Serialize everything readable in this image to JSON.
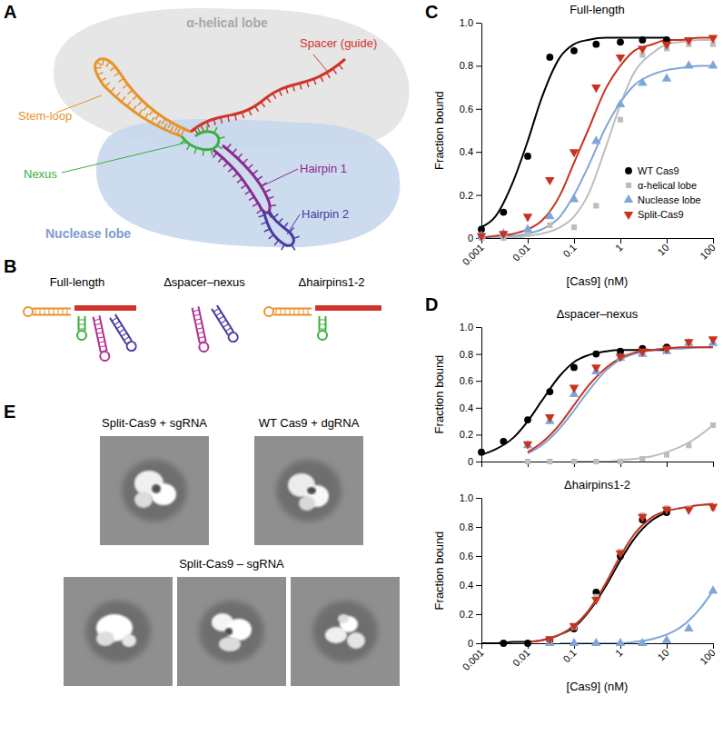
{
  "figure": {
    "panel_a": {
      "letter": "A",
      "alpha_lobe": "α-helical lobe",
      "stem_loop": "Stem-loop",
      "spacer": "Spacer (guide)",
      "nexus": "Nexus",
      "nuclease_lobe": "Nuclease lobe",
      "hairpin1": "Hairpin 1",
      "hairpin2": "Hairpin 2"
    },
    "panel_b": {
      "letter": "B",
      "constructs": [
        "Full-length",
        "Δspacer–nexus",
        "Δhairpins1-2"
      ]
    },
    "panel_c": {
      "letter": "C"
    },
    "panel_d": {
      "letter": "D"
    },
    "panel_e": {
      "letter": "E",
      "top_row": [
        "Split-Cas9 + sgRNA",
        "WT Cas9 + dgRNA"
      ],
      "bottom_row": "Split-Cas9 – sgRNA"
    }
  },
  "chart_data": [
    {
      "type": "scatter",
      "title": "Full-length",
      "xlabel": "[Cas9] (nM)",
      "ylabel": "Fraction bound",
      "log": "x",
      "legend": "lower right",
      "x": [
        0.001,
        0.003,
        0.01,
        0.03,
        0.1,
        0.3,
        1,
        3,
        10,
        30,
        100
      ],
      "fit_x": [
        0.001,
        0.002,
        0.005,
        0.01,
        0.02,
        0.05,
        0.1,
        0.2,
        0.5,
        1,
        2,
        5,
        10,
        20,
        50,
        100
      ],
      "xlim": [
        0.001,
        100
      ],
      "ylim": [
        0,
        1
      ],
      "xticks": [
        0.001,
        0.01,
        0.1,
        1,
        10,
        100
      ],
      "yticks": [
        0,
        0.2,
        0.4,
        0.6,
        0.8,
        {
          "value": 1,
          "label": "1.0"
        }
      ],
      "series": [
        {
          "name": "WT Cas9",
          "color": "#000000",
          "marker": "circle",
          "values": [
            0.04,
            0.12,
            0.38,
            0.84,
            0.87,
            0.9,
            0.91,
            0.92,
            0.92,
            null,
            null
          ],
          "fit": [
            0.05,
            0.1,
            0.27,
            0.45,
            0.65,
            0.84,
            0.9,
            0.92,
            0.93,
            0.93,
            0.93,
            0.93,
            0.93,
            null,
            null,
            null
          ]
        },
        {
          "name": "α-helical lobe",
          "color": "#bdbdbd",
          "marker": "square",
          "values": [
            0,
            0,
            0.02,
            0.06,
            0.05,
            0.15,
            0.55,
            0.85,
            0.88,
            0.9,
            0.9
          ],
          "fit": [
            0,
            0,
            0,
            0.01,
            0.02,
            0.05,
            0.1,
            0.2,
            0.43,
            0.62,
            0.77,
            0.86,
            0.9,
            0.91,
            0.92,
            0.92
          ]
        },
        {
          "name": "Nuclease lobe",
          "color": "#7fa6d8",
          "marker": "triangle-up",
          "values": [
            0.01,
            0.02,
            0.04,
            0.1,
            0.18,
            0.45,
            0.62,
            0.72,
            0.74,
            0.8,
            0.8
          ],
          "fit": [
            0,
            0.01,
            0.01,
            0.02,
            0.04,
            0.1,
            0.2,
            0.33,
            0.52,
            0.63,
            0.71,
            0.76,
            0.78,
            0.79,
            0.8,
            0.8
          ]
        },
        {
          "name": "Split-Cas9",
          "color": "#c8321e",
          "marker": "triangle-down",
          "values": [
            0.01,
            0.02,
            0.1,
            0.27,
            0.4,
            0.7,
            0.84,
            0.88,
            0.9,
            0.92,
            0.93
          ],
          "fit": [
            0,
            0.01,
            0.02,
            0.04,
            0.08,
            0.2,
            0.35,
            0.5,
            0.7,
            0.8,
            0.87,
            0.9,
            0.92,
            0.92,
            0.93,
            0.93
          ]
        }
      ]
    },
    {
      "type": "scatter",
      "title": "Δspacer–nexus",
      "ylabel": "Fraction bound",
      "log": "x",
      "tick_labels": "y",
      "x": [
        0.001,
        0.003,
        0.01,
        0.03,
        0.1,
        0.3,
        1,
        3,
        10,
        30,
        100
      ],
      "fit_x": [
        0.001,
        0.002,
        0.005,
        0.01,
        0.02,
        0.05,
        0.1,
        0.2,
        0.5,
        1,
        2,
        5,
        10,
        20,
        50,
        100
      ],
      "xlim": [
        0.001,
        100
      ],
      "ylim": [
        0,
        1
      ],
      "xticks": [
        0.001,
        0.01,
        0.1,
        1,
        10,
        100
      ],
      "yticks": [
        0,
        0.2,
        0.4,
        0.6,
        0.8,
        {
          "value": 1,
          "label": "1.0"
        }
      ],
      "series": [
        {
          "color": "#000000",
          "marker": "circle",
          "values": [
            0.07,
            0.15,
            0.31,
            0.52,
            0.7,
            0.8,
            0.82,
            0.84,
            0.85,
            null,
            null
          ],
          "fit": [
            0.05,
            0.09,
            0.18,
            0.3,
            0.45,
            0.64,
            0.74,
            0.79,
            0.82,
            0.83,
            0.83,
            0.83,
            0.83,
            null,
            null,
            null
          ]
        },
        {
          "color": "#bdbdbd",
          "marker": "square",
          "values": [
            null,
            null,
            0,
            0,
            0,
            0,
            0,
            0.02,
            0.05,
            0.12,
            0.27
          ],
          "fit": [
            null,
            null,
            null,
            null,
            null,
            null,
            0,
            0,
            0,
            0.01,
            0.02,
            0.04,
            0.07,
            0.11,
            0.19,
            0.27
          ]
        },
        {
          "color": "#7fa6d8",
          "marker": "triangle-up",
          "values": [
            null,
            null,
            0.12,
            0.3,
            0.5,
            0.67,
            0.77,
            0.8,
            0.82,
            0.88,
            0.88
          ],
          "fit": [
            null,
            null,
            null,
            0.06,
            0.12,
            0.25,
            0.38,
            0.52,
            0.68,
            0.76,
            0.8,
            0.83,
            0.84,
            0.84,
            0.85,
            0.85
          ]
        },
        {
          "color": "#c8321e",
          "marker": "triangle-down",
          "values": [
            null,
            null,
            0.13,
            0.33,
            0.55,
            0.7,
            0.78,
            0.82,
            0.84,
            0.89,
            0.91
          ],
          "fit": [
            null,
            null,
            null,
            0.07,
            0.14,
            0.28,
            0.42,
            0.56,
            0.7,
            0.77,
            0.81,
            0.83,
            0.84,
            0.85,
            0.85,
            0.85
          ]
        }
      ]
    },
    {
      "type": "scatter",
      "title": "Δhairpins1-2",
      "xlabel": "[Cas9] (nM)",
      "ylabel": "Fraction bound",
      "log": "x",
      "x": [
        0.001,
        0.003,
        0.01,
        0.03,
        0.1,
        0.3,
        1,
        3,
        10,
        30,
        100
      ],
      "fit_x": [
        0.001,
        0.002,
        0.005,
        0.01,
        0.02,
        0.05,
        0.1,
        0.2,
        0.5,
        1,
        2,
        5,
        10,
        20,
        50,
        100
      ],
      "xlim": [
        0.001,
        100
      ],
      "ylim": [
        0,
        1
      ],
      "xticks": [
        0.001,
        0.01,
        0.1,
        1,
        10,
        100
      ],
      "yticks": [
        0,
        0.2,
        0.4,
        0.6,
        0.8,
        {
          "value": 1,
          "label": "1.0"
        }
      ],
      "series": [
        {
          "color": "#000000",
          "marker": "circle",
          "values": [
            null,
            0,
            0,
            0.02,
            0.1,
            0.35,
            0.6,
            0.85,
            0.9,
            null,
            null
          ],
          "fit": [
            0,
            0,
            0.01,
            0.01,
            0.02,
            0.06,
            0.11,
            0.21,
            0.4,
            0.57,
            0.72,
            0.85,
            0.9,
            null,
            null,
            null
          ]
        },
        {
          "color": "#bdbdbd",
          "marker": "square",
          "values": [
            null,
            null,
            null,
            0.03,
            0.11,
            0.32,
            0.63,
            0.88,
            0.93,
            0.93,
            0.93
          ],
          "fit": [
            null,
            null,
            null,
            0.01,
            0.02,
            0.06,
            0.12,
            0.22,
            0.42,
            0.6,
            0.75,
            0.87,
            0.91,
            0.93,
            0.95,
            0.95
          ]
        },
        {
          "color": "#7fa6d8",
          "marker": "triangle-up",
          "values": [
            null,
            null,
            null,
            0,
            0,
            0,
            0,
            0,
            0.02,
            0.1,
            0.36
          ],
          "fit": [
            null,
            null,
            null,
            null,
            null,
            0,
            0,
            0,
            0,
            0,
            0.01,
            0.03,
            0.06,
            0.11,
            0.23,
            0.36
          ]
        },
        {
          "color": "#c8321e",
          "marker": "triangle-down",
          "values": [
            null,
            null,
            null,
            0.03,
            0.12,
            0.3,
            0.62,
            0.87,
            0.92,
            0.92,
            0.94
          ],
          "fit": [
            null,
            null,
            null,
            0.01,
            0.02,
            0.06,
            0.12,
            0.22,
            0.42,
            0.6,
            0.75,
            0.87,
            0.91,
            0.93,
            0.95,
            0.96
          ]
        }
      ]
    }
  ]
}
